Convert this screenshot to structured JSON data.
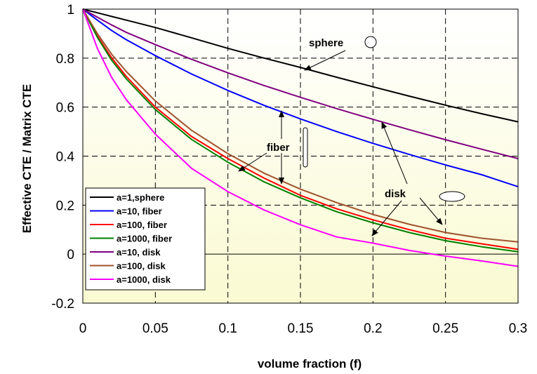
{
  "chart_data": {
    "type": "line",
    "title": "",
    "xlabel": "volume fraction (f)",
    "ylabel": "Effective CTE / Matrix CTE",
    "xlim": [
      0,
      0.3
    ],
    "ylim": [
      -0.2,
      1
    ],
    "xticks": [
      0,
      0.05,
      0.1,
      0.15,
      0.2,
      0.25,
      0.3
    ],
    "yticks": [
      -0.2,
      0,
      0.2,
      0.4,
      0.6,
      0.8,
      1
    ],
    "xtick_labels": [
      "0",
      "0.05",
      "0.1",
      "0.15",
      "0.2",
      "0.25",
      "0.3"
    ],
    "ytick_labels": [
      "-0.2",
      "0",
      "0.2",
      "0.4",
      "0.6",
      "0.8",
      "1"
    ],
    "grid": true,
    "legend_position": "bottom-left",
    "x": [
      0,
      0.01,
      0.02,
      0.03,
      0.05,
      0.075,
      0.1,
      0.125,
      0.15,
      0.175,
      0.2,
      0.225,
      0.25,
      0.275,
      0.3
    ],
    "series": [
      {
        "name": "a=1,sphere",
        "color": "#000000",
        "values": [
          1,
          0.985,
          0.97,
          0.955,
          0.925,
          0.883,
          0.84,
          0.8,
          0.762,
          0.722,
          0.683,
          0.645,
          0.608,
          0.573,
          0.54
        ]
      },
      {
        "name": "a=10, fiber",
        "color": "#0000ff",
        "values": [
          1,
          0.955,
          0.912,
          0.875,
          0.81,
          0.735,
          0.668,
          0.607,
          0.552,
          0.5,
          0.452,
          0.407,
          0.364,
          0.324,
          0.275
        ]
      },
      {
        "name": "a=100, fiber",
        "color": "#ff0000",
        "values": [
          1,
          0.89,
          0.8,
          0.725,
          0.6,
          0.48,
          0.39,
          0.31,
          0.24,
          0.185,
          0.14,
          0.1,
          0.065,
          0.042,
          0.02
        ]
      },
      {
        "name": "a=1000, fiber",
        "color": "#008000",
        "values": [
          1,
          0.885,
          0.79,
          0.715,
          0.59,
          0.468,
          0.375,
          0.295,
          0.23,
          0.173,
          0.128,
          0.088,
          0.055,
          0.03,
          0.01
        ]
      },
      {
        "name": "a=10, disk",
        "color": "#800080",
        "values": [
          1,
          0.967,
          0.935,
          0.905,
          0.855,
          0.795,
          0.74,
          0.688,
          0.64,
          0.594,
          0.55,
          0.508,
          0.467,
          0.428,
          0.39
        ]
      },
      {
        "name": "a=100, disk",
        "color": "#a0522d",
        "values": [
          1,
          0.9,
          0.815,
          0.745,
          0.625,
          0.505,
          0.41,
          0.33,
          0.265,
          0.21,
          0.162,
          0.122,
          0.088,
          0.065,
          0.05
        ]
      },
      {
        "name": "a=1000, disk",
        "color": "#ff00ff",
        "values": [
          1,
          0.84,
          0.72,
          0.63,
          0.49,
          0.35,
          0.255,
          0.18,
          0.12,
          0.07,
          0.045,
          0.015,
          -0.008,
          -0.028,
          -0.05
        ]
      }
    ],
    "annotations": [
      {
        "text": "sphere",
        "x": 0.163,
        "y": 0.88
      },
      {
        "text": "fiber",
        "x": 0.13,
        "y": 0.45
      },
      {
        "text": "disk",
        "x": 0.222,
        "y": 0.24
      }
    ]
  }
}
